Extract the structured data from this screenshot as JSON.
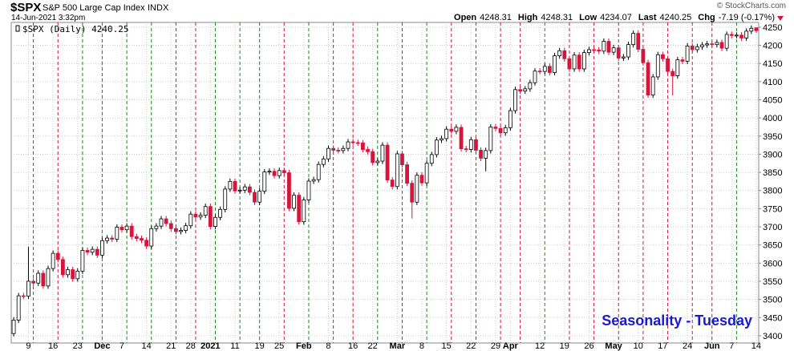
{
  "chart_data": {
    "type": "candlestick",
    "title": "$SPX",
    "subtitle": "S&P 500 Large Cap Index",
    "exchange": "INDX",
    "datetime": "14-Jun-2021 3:32pm",
    "copyright": "© StockCharts.com",
    "quote": [
      {
        "label": "Open",
        "value": "4248.31"
      },
      {
        "label": "High",
        "value": "4248.31"
      },
      {
        "label": "Low",
        "value": "4234.07"
      },
      {
        "label": "Last",
        "value": "4240.25"
      },
      {
        "label": "Chg",
        "value": "-7.19 (-0.17%)"
      }
    ],
    "legend": "$SPX (Daily) 4240.25",
    "annotation": "Seasonality - Tuesday",
    "up_color": "#000000",
    "down_color": "#d6143c",
    "tuesday_up_color": "#1a8a1a",
    "tuesday_down_color": "#d6143c",
    "annotation_color": "#1a1acc",
    "ylim": [
      3380,
      4263
    ],
    "yticks": [
      3400,
      3450,
      3500,
      3550,
      3600,
      3650,
      3700,
      3750,
      3800,
      3850,
      3900,
      3950,
      4000,
      4050,
      4100,
      4150,
      4200,
      4250
    ],
    "xticks": [
      {
        "value": "2020-11-09",
        "label": "9"
      },
      {
        "value": "2020-11-16",
        "label": "16"
      },
      {
        "value": "2020-11-23",
        "label": "23"
      },
      {
        "value": "2020-12-01",
        "label": "Dec"
      },
      {
        "value": "2020-12-07",
        "label": "7"
      },
      {
        "value": "2020-12-14",
        "label": "14"
      },
      {
        "value": "2020-12-21",
        "label": "21"
      },
      {
        "value": "2020-12-28",
        "label": "28"
      },
      {
        "value": "2021-01-04",
        "label": "2021"
      },
      {
        "value": "2021-01-11",
        "label": "11"
      },
      {
        "value": "2021-01-19",
        "label": "19"
      },
      {
        "value": "2021-01-25",
        "label": "25"
      },
      {
        "value": "2021-02-01",
        "label": "Feb"
      },
      {
        "value": "2021-02-08",
        "label": "8"
      },
      {
        "value": "2021-02-16",
        "label": "16"
      },
      {
        "value": "2021-02-22",
        "label": "22"
      },
      {
        "value": "2021-03-01",
        "label": "Mar"
      },
      {
        "value": "2021-03-08",
        "label": "8"
      },
      {
        "value": "2021-03-15",
        "label": "15"
      },
      {
        "value": "2021-03-22",
        "label": "22"
      },
      {
        "value": "2021-03-29",
        "label": "29"
      },
      {
        "value": "2021-04-01",
        "label": "Apr"
      },
      {
        "value": "2021-04-12",
        "label": "12"
      },
      {
        "value": "2021-04-19",
        "label": "19"
      },
      {
        "value": "2021-04-26",
        "label": "26"
      },
      {
        "value": "2021-05-03",
        "label": "May"
      },
      {
        "value": "2021-05-10",
        "label": "10"
      },
      {
        "value": "2021-05-17",
        "label": "17"
      },
      {
        "value": "2021-05-24",
        "label": "24"
      },
      {
        "value": "2021-06-01",
        "label": "Jun"
      },
      {
        "value": "2021-06-07",
        "label": "7"
      },
      {
        "value": "2021-06-14",
        "label": "14"
      }
    ],
    "x": [
      "2020-11-04",
      "2020-11-05",
      "2020-11-06",
      "2020-11-09",
      "2020-11-10",
      "2020-11-11",
      "2020-11-12",
      "2020-11-13",
      "2020-11-16",
      "2020-11-17",
      "2020-11-18",
      "2020-11-19",
      "2020-11-20",
      "2020-11-23",
      "2020-11-24",
      "2020-11-25",
      "2020-11-27",
      "2020-11-30",
      "2020-12-01",
      "2020-12-02",
      "2020-12-03",
      "2020-12-04",
      "2020-12-07",
      "2020-12-08",
      "2020-12-09",
      "2020-12-10",
      "2020-12-11",
      "2020-12-14",
      "2020-12-15",
      "2020-12-16",
      "2020-12-17",
      "2020-12-18",
      "2020-12-21",
      "2020-12-22",
      "2020-12-23",
      "2020-12-24",
      "2020-12-28",
      "2020-12-29",
      "2020-12-30",
      "2020-12-31",
      "2021-01-04",
      "2021-01-05",
      "2021-01-06",
      "2021-01-07",
      "2021-01-08",
      "2021-01-11",
      "2021-01-12",
      "2021-01-13",
      "2021-01-14",
      "2021-01-15",
      "2021-01-19",
      "2021-01-20",
      "2021-01-21",
      "2021-01-22",
      "2021-01-25",
      "2021-01-26",
      "2021-01-27",
      "2021-01-28",
      "2021-01-29",
      "2021-02-01",
      "2021-02-02",
      "2021-02-03",
      "2021-02-04",
      "2021-02-05",
      "2021-02-08",
      "2021-02-09",
      "2021-02-10",
      "2021-02-11",
      "2021-02-12",
      "2021-02-16",
      "2021-02-17",
      "2021-02-18",
      "2021-02-19",
      "2021-02-22",
      "2021-02-23",
      "2021-02-24",
      "2021-02-25",
      "2021-02-26",
      "2021-03-01",
      "2021-03-02",
      "2021-03-03",
      "2021-03-04",
      "2021-03-05",
      "2021-03-08",
      "2021-03-09",
      "2021-03-10",
      "2021-03-11",
      "2021-03-12",
      "2021-03-15",
      "2021-03-16",
      "2021-03-17",
      "2021-03-18",
      "2021-03-19",
      "2021-03-22",
      "2021-03-23",
      "2021-03-24",
      "2021-03-25",
      "2021-03-26",
      "2021-03-29",
      "2021-03-30",
      "2021-03-31",
      "2021-04-01",
      "2021-04-05",
      "2021-04-06",
      "2021-04-07",
      "2021-04-08",
      "2021-04-09",
      "2021-04-12",
      "2021-04-13",
      "2021-04-14",
      "2021-04-15",
      "2021-04-16",
      "2021-04-19",
      "2021-04-20",
      "2021-04-21",
      "2021-04-22",
      "2021-04-23",
      "2021-04-26",
      "2021-04-27",
      "2021-04-28",
      "2021-04-29",
      "2021-04-30",
      "2021-05-03",
      "2021-05-04",
      "2021-05-05",
      "2021-05-06",
      "2021-05-07",
      "2021-05-10",
      "2021-05-11",
      "2021-05-12",
      "2021-05-13",
      "2021-05-14",
      "2021-05-17",
      "2021-05-18",
      "2021-05-19",
      "2021-05-20",
      "2021-05-21",
      "2021-05-24",
      "2021-05-25",
      "2021-05-26",
      "2021-05-27",
      "2021-05-28",
      "2021-06-01",
      "2021-06-02",
      "2021-06-03",
      "2021-06-04",
      "2021-06-07",
      "2021-06-08",
      "2021-06-09",
      "2021-06-10",
      "2021-06-11",
      "2021-06-14"
    ],
    "open": [
      3406,
      3443,
      3510,
      3509,
      3550,
      3545,
      3572,
      3537,
      3585,
      3627,
      3610,
      3568,
      3582,
      3557,
      3578,
      3635,
      3630,
      3638,
      3622,
      3662,
      3669,
      3666,
      3699,
      3692,
      3702,
      3673,
      3668,
      3663,
      3647,
      3695,
      3702,
      3722,
      3709,
      3695,
      3687,
      3690,
      3703,
      3735,
      3727,
      3732,
      3756,
      3701,
      3726,
      3748,
      3804,
      3825,
      3799,
      3801,
      3810,
      3795,
      3768,
      3798,
      3851,
      3853,
      3841,
      3855,
      3849,
      3751,
      3787,
      3714,
      3774,
      3826,
      3830,
      3872,
      3887,
      3916,
      3911,
      3910,
      3916,
      3934,
      3932,
      3931,
      3913,
      3907,
      3877,
      3881,
      3925,
      3829,
      3811,
      3901,
      3871,
      3820,
      3768,
      3842,
      3821,
      3875,
      3899,
      3939,
      3943,
      3969,
      3963,
      3974,
      3915,
      3913,
      3940,
      3911,
      3889,
      3910,
      3975,
      3971,
      3959,
      3973,
      4020,
      4078,
      4074,
      4080,
      4097,
      4129,
      4128,
      4142,
      4125,
      4171,
      4185,
      4163,
      4135,
      4173,
      4135,
      4180,
      4188,
      4187,
      4184,
      4211,
      4181,
      4193,
      4165,
      4168,
      4202,
      4233,
      4189,
      4152,
      4063,
      4113,
      4174,
      4163,
      4128,
      4116,
      4160,
      4156,
      4198,
      4188,
      4196,
      4201,
      4204,
      4202,
      4208,
      4192,
      4230,
      4227,
      4228,
      4220,
      4239,
      4248.31
    ],
    "high": [
      3451,
      3518,
      3518,
      3645,
      3558,
      3580,
      3580,
      3593,
      3635,
      3635,
      3618,
      3590,
      3590,
      3586,
      3643,
      3643,
      3646,
      3646,
      3670,
      3677,
      3677,
      3707,
      3707,
      3710,
      3710,
      3681,
      3676,
      3671,
      3703,
      3710,
      3730,
      3730,
      3717,
      3703,
      3698,
      3711,
      3743,
      3743,
      3740,
      3764,
      3764,
      3734,
      3756,
      3812,
      3833,
      3833,
      3809,
      3818,
      3818,
      3803,
      3806,
      3859,
      3861,
      3861,
      3863,
      3863,
      3857,
      3795,
      3795,
      3782,
      3834,
      3838,
      3880,
      3895,
      3924,
      3924,
      3919,
      3924,
      3942,
      3942,
      3940,
      3939,
      3921,
      3915,
      3889,
      3933,
      3933,
      3837,
      3909,
      3909,
      3879,
      3828,
      3850,
      3850,
      3883,
      3907,
      3947,
      3951,
      3977,
      3977,
      3982,
      3982,
      3923,
      3948,
      3948,
      3919,
      3918,
      3983,
      3983,
      3979,
      3981,
      4028,
      4086,
      4086,
      4088,
      4105,
      4137,
      4137,
      4150,
      4150,
      4179,
      4193,
      4193,
      4171,
      4181,
      4181,
      4188,
      4196,
      4196,
      4195,
      4219,
      4219,
      4201,
      4201,
      4176,
      4210,
      4241,
      4241,
      4197,
      4160,
      4121,
      4182,
      4182,
      4171,
      4136,
      4168,
      4168,
      4206,
      4206,
      4204,
      4209,
      4212,
      4212,
      4216,
      4216,
      4238,
      4238,
      4236,
      4236,
      4247,
      4255,
      4248.31
    ],
    "low": [
      3398,
      3435,
      3501,
      3501,
      3537,
      3537,
      3529,
      3529,
      3577,
      3602,
      3560,
      3560,
      3549,
      3549,
      3570,
      3622,
      3622,
      3614,
      3614,
      3654,
      3658,
      3658,
      3684,
      3684,
      3665,
      3660,
      3655,
      3639,
      3639,
      3687,
      3694,
      3701,
      3687,
      3679,
      3679,
      3682,
      3695,
      3719,
      3719,
      3724,
      3693,
      3693,
      3718,
      3740,
      3796,
      3791,
      3791,
      3793,
      3787,
      3760,
      3760,
      3790,
      3843,
      3833,
      3833,
      3841,
      3743,
      3743,
      3706,
      3706,
      3766,
      3818,
      3822,
      3864,
      3879,
      3903,
      3902,
      3902,
      3908,
      3924,
      3923,
      3905,
      3899,
      3869,
      3869,
      3873,
      3821,
      3803,
      3803,
      3863,
      3812,
      3723,
      3760,
      3813,
      3813,
      3867,
      3891,
      3931,
      3935,
      3955,
      3955,
      3907,
      3905,
      3905,
      3903,
      3881,
      3853,
      3902,
      3963,
      3951,
      3951,
      3965,
      4012,
      4066,
      4066,
      4072,
      4089,
      4120,
      4120,
      4117,
      4117,
      4163,
      4155,
      4127,
      4127,
      4127,
      4127,
      4172,
      4179,
      4176,
      4176,
      4173,
      4173,
      4157,
      4157,
      4160,
      4194,
      4181,
      4144,
      4055,
      4055,
      4105,
      4155,
      4120,
      4062,
      4108,
      4148,
      4148,
      4180,
      4180,
      4188,
      4193,
      4194,
      4194,
      4184,
      4184,
      4219,
      4219,
      4212,
      4212,
      4231,
      4234.07
    ],
    "close": [
      3443,
      3510,
      3509,
      3550,
      3545,
      3572,
      3537,
      3585,
      3627,
      3610,
      3568,
      3582,
      3557,
      3578,
      3635,
      3630,
      3638,
      3622,
      3662,
      3669,
      3666,
      3699,
      3692,
      3702,
      3673,
      3668,
      3663,
      3647,
      3695,
      3702,
      3722,
      3709,
      3695,
      3687,
      3690,
      3703,
      3735,
      3727,
      3732,
      3756,
      3701,
      3726,
      3748,
      3804,
      3825,
      3799,
      3801,
      3810,
      3795,
      3768,
      3798,
      3851,
      3853,
      3841,
      3855,
      3849,
      3751,
      3787,
      3714,
      3774,
      3826,
      3830,
      3872,
      3887,
      3916,
      3911,
      3910,
      3916,
      3934,
      3932,
      3931,
      3913,
      3907,
      3877,
      3881,
      3925,
      3829,
      3811,
      3901,
      3871,
      3820,
      3768,
      3842,
      3821,
      3875,
      3899,
      3939,
      3943,
      3969,
      3963,
      3974,
      3915,
      3913,
      3940,
      3911,
      3889,
      3910,
      3975,
      3971,
      3959,
      3973,
      4020,
      4078,
      4074,
      4080,
      4097,
      4129,
      4128,
      4142,
      4125,
      4171,
      4185,
      4163,
      4135,
      4173,
      4135,
      4180,
      4188,
      4187,
      4184,
      4211,
      4181,
      4193,
      4165,
      4168,
      4202,
      4233,
      4189,
      4152,
      4063,
      4113,
      4174,
      4163,
      4128,
      4116,
      4160,
      4156,
      4198,
      4188,
      4196,
      4201,
      4204,
      4202,
      4208,
      4192,
      4230,
      4227,
      4228,
      4220,
      4239,
      4247,
      4240.25
    ]
  }
}
